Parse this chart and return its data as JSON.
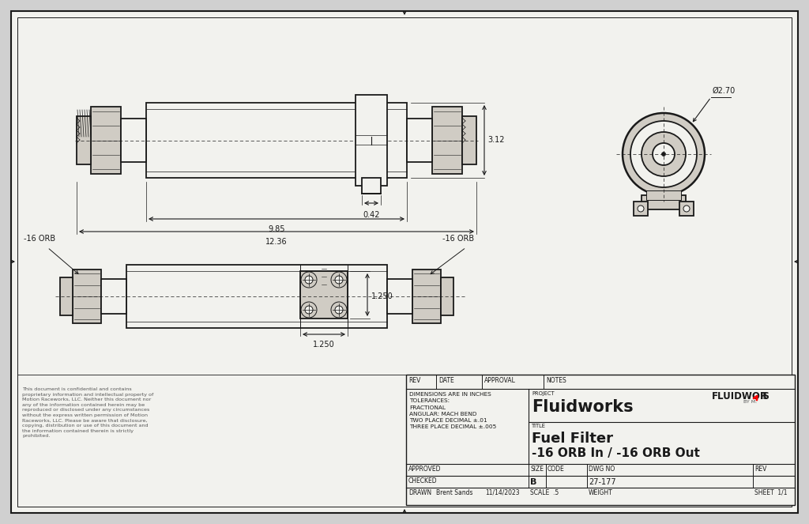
{
  "bg_color": "#d0d0d0",
  "paper_color": "#f2f2ee",
  "line_color": "#1a1a1a",
  "dim_color": "#1a1a1a",
  "body_fill": "#e8e4dc",
  "fitting_fill": "#d0ccc4",
  "dark_fill": "#b8b4ac",
  "title_block": {
    "project": "Fluidworks",
    "title_line1": "Fuel Filter",
    "title_line2": "-16 ORB In / -16 ORB Out",
    "drawn": "Brent Sands",
    "date": "11/14/2023",
    "scale": ".5",
    "weight": "",
    "sheet": "1/1",
    "dwg_no": "27-177",
    "size": "B",
    "rev": "",
    "tolerances_text": "DIMENSIONS ARE IN INCHES\nTOLERANCES:\nFRACTIONAL\nANGULAR: MACH BEND\nTWO PLACE DECIMAL ±.01\nTHREE PLACE DECIMAL ±.005"
  },
  "confidential_text": "This document is confidential and contains\nproprietary information and intellectual property of\nMotion Raceworks, LLC. Neither this document nor\nany of the information contained herein may be\nreproduced or disclosed under any circumstances\nwithout the express written permission of Motion\nRaceworks, LLC. Please be aware that disclosure,\ncopying, distribution or use of this document and\nthe information contained therein is strictly\nprohibited.",
  "dims": {
    "d270": "Ø2.70",
    "d312": "3.12",
    "d042": "0.42",
    "d985": "9.85",
    "d1236": "12.36",
    "orb_left": "-16 ORB",
    "orb_right": "-16 ORB",
    "d1250_h": "1.250",
    "d1250_v": "1.250"
  }
}
